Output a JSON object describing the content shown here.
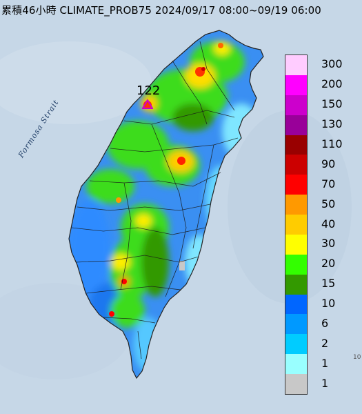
{
  "header": {
    "title": "累積46小時 CLIMATE_PROB75 2024/09/17 08:00~09/19 06:00"
  },
  "map": {
    "sea_label": "Formosa Strait",
    "peak_value": "122",
    "peak_marker_icon": "triangle-marker-icon",
    "corner_label": "10"
  },
  "legend": {
    "items": [
      {
        "label": "300",
        "color": "#ffccff"
      },
      {
        "label": "200",
        "color": "#ff00ff"
      },
      {
        "label": "150",
        "color": "#cc00cc"
      },
      {
        "label": "130",
        "color": "#990099"
      },
      {
        "label": "110",
        "color": "#990000"
      },
      {
        "label": "90",
        "color": "#cc0000"
      },
      {
        "label": "70",
        "color": "#ff0000"
      },
      {
        "label": "50",
        "color": "#ff9900"
      },
      {
        "label": "40",
        "color": "#ffcc00"
      },
      {
        "label": "30",
        "color": "#ffff00"
      },
      {
        "label": "20",
        "color": "#33ff00"
      },
      {
        "label": "15",
        "color": "#339900"
      },
      {
        "label": "10",
        "color": "#0066ff"
      },
      {
        "label": "6",
        "color": "#0099ff"
      },
      {
        "label": "2",
        "color": "#00ccff"
      },
      {
        "label": "1",
        "color": "#99ffff"
      },
      {
        "label": "",
        "color": "#c8c8c8"
      }
    ]
  }
}
